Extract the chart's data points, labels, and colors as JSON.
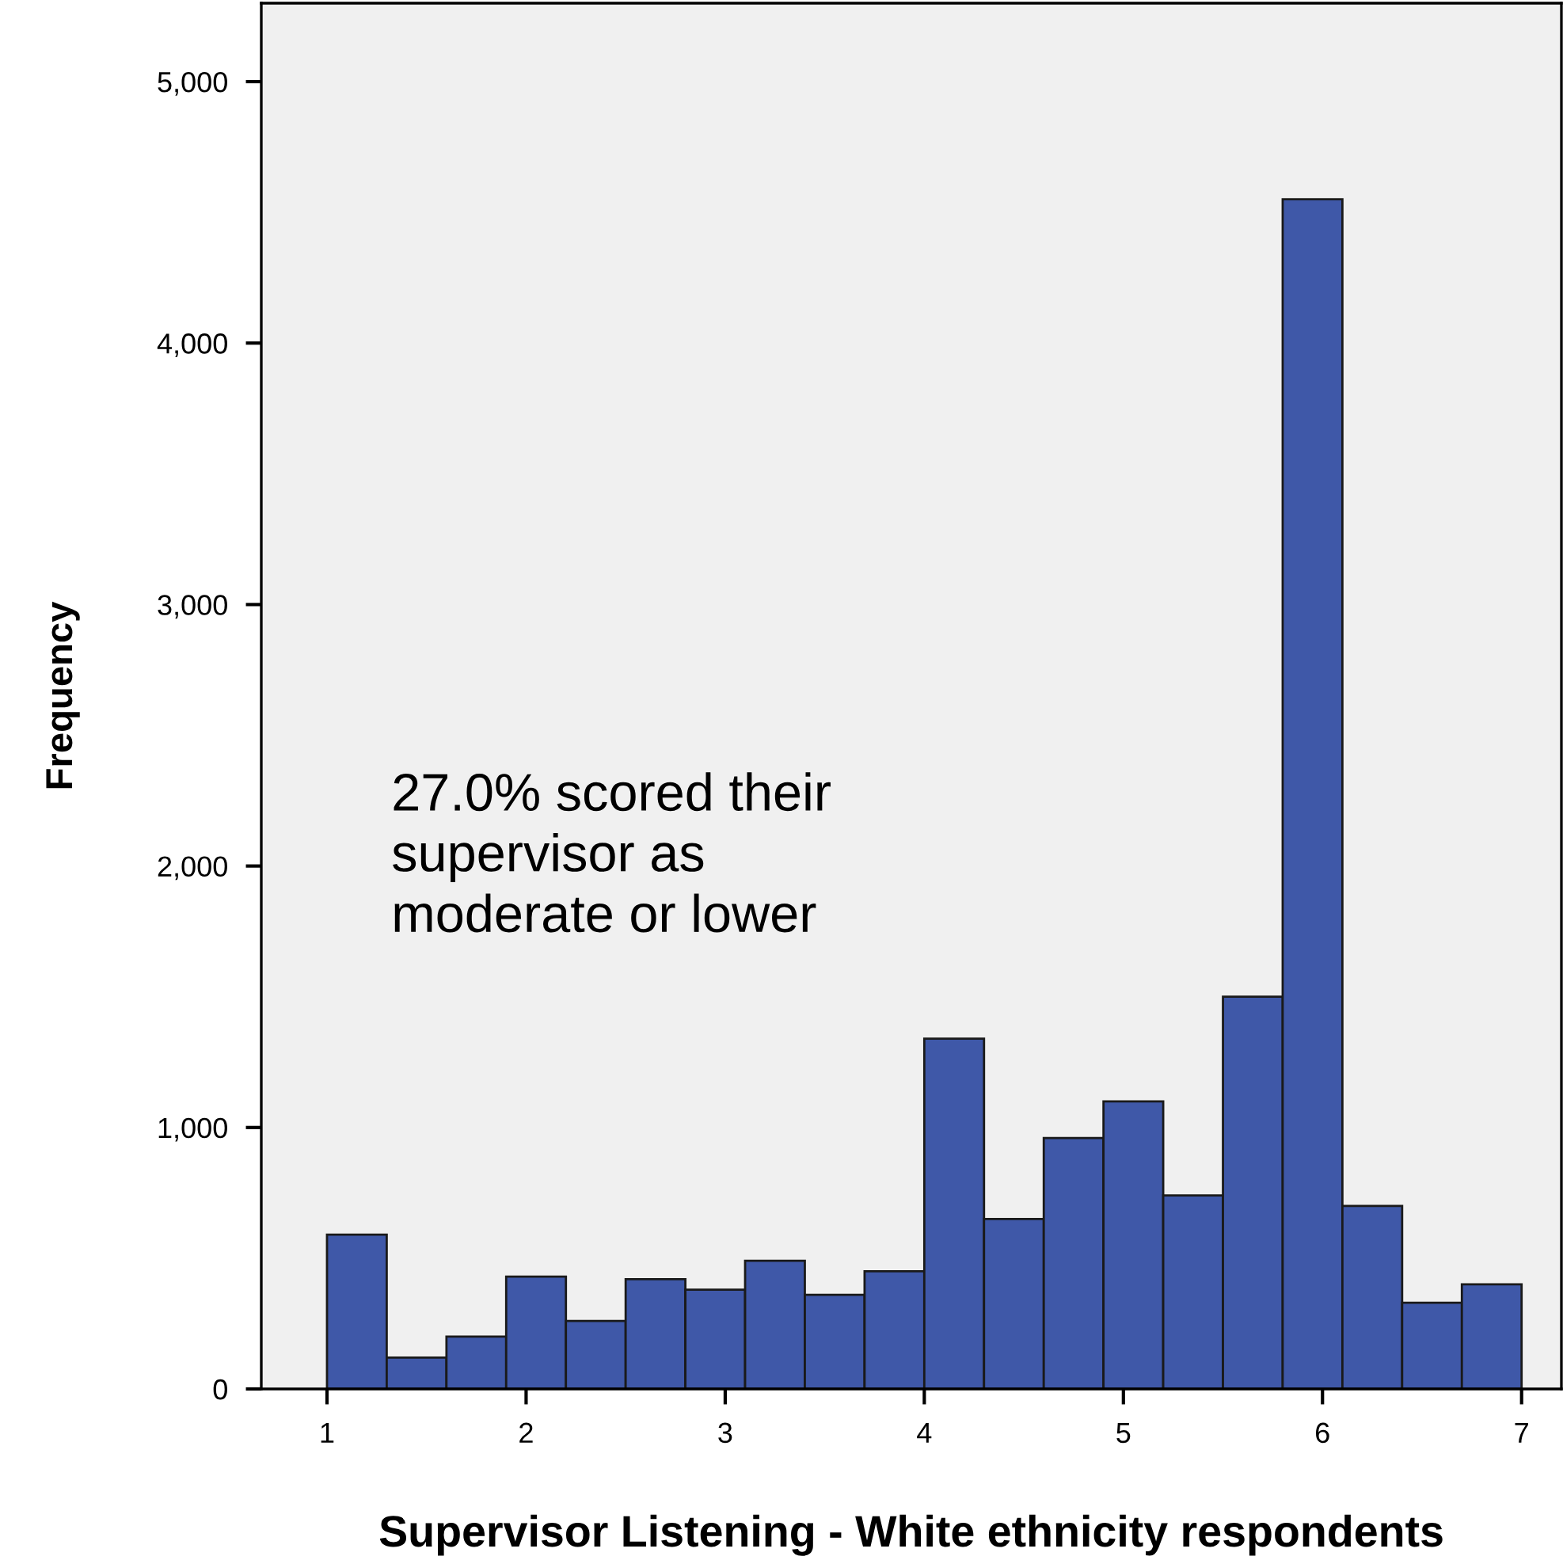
{
  "chart_data": {
    "type": "histogram",
    "xlabel": "Supervisor Listening - White ethnicity respondents",
    "ylabel": "Frequency",
    "bins": [
      1.0,
      1.3,
      1.6,
      1.9,
      2.2,
      2.5,
      2.8,
      3.1,
      3.4,
      3.7,
      4.0,
      4.3,
      4.6,
      4.9,
      5.2,
      5.5,
      5.8,
      6.1,
      6.4,
      6.7,
      7.0
    ],
    "values": [
      590,
      120,
      200,
      430,
      260,
      420,
      380,
      490,
      360,
      450,
      1340,
      650,
      960,
      1100,
      740,
      1500,
      4550,
      700,
      330,
      400
    ],
    "color": "#3f58a8",
    "xlim": [
      0.67,
      7.2
    ],
    "xticks": [
      1,
      2,
      3,
      4,
      5,
      6,
      7
    ],
    "ylim": [
      0,
      5300
    ],
    "yticks": [
      {
        "value": 0,
        "label": "0"
      },
      {
        "value": 1000,
        "label": "1,000"
      },
      {
        "value": 2000,
        "label": "2,000"
      },
      {
        "value": 3000,
        "label": "3,000"
      },
      {
        "value": 4000,
        "label": "4,000"
      },
      {
        "value": 5000,
        "label": "5,000"
      }
    ],
    "grid": false,
    "annotations": [
      "27.0% scored their\nsupervisor as\nmoderate or lower"
    ]
  }
}
